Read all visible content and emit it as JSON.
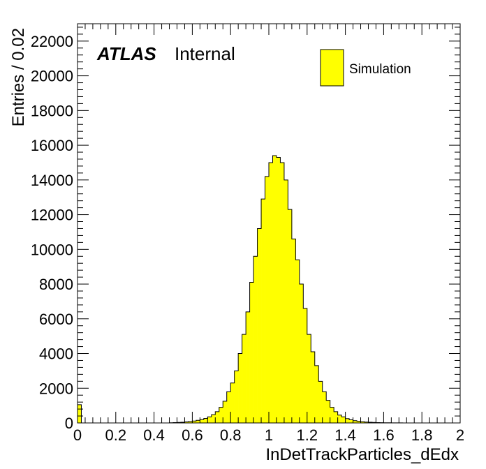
{
  "chart_data": {
    "type": "bar",
    "title": "",
    "xlabel": "InDetTrackParticles_dEdx",
    "ylabel": "Entries / 0.02",
    "xlim": [
      0,
      2
    ],
    "ylim": [
      0,
      23000
    ],
    "bin_width": 0.02,
    "x_ticks": [
      "0",
      "0.2",
      "0.4",
      "0.6",
      "0.8",
      "1",
      "1.2",
      "1.4",
      "1.6",
      "1.8",
      "2"
    ],
    "y_ticks": [
      "0",
      "2000",
      "4000",
      "6000",
      "8000",
      "10000",
      "12000",
      "14000",
      "16000",
      "18000",
      "20000",
      "22000"
    ],
    "grid": false,
    "legend_position": "top-right",
    "experiment_label": "ATLAS",
    "status_label": "Internal",
    "series": [
      {
        "name": "Simulation",
        "color": "#ffff00",
        "edge_color": "#000000",
        "values": [
          1050,
          0,
          0,
          0,
          0,
          0,
          0,
          0,
          0,
          0,
          0,
          0,
          0,
          0,
          0,
          0,
          0,
          0,
          0,
          0,
          0,
          0,
          0,
          0,
          10,
          20,
          30,
          40,
          60,
          80,
          110,
          150,
          190,
          260,
          350,
          480,
          650,
          900,
          1250,
          1800,
          2300,
          3000,
          4000,
          5100,
          6400,
          8100,
          9600,
          11200,
          12900,
          14200,
          15000,
          15400,
          15300,
          15000,
          14000,
          12300,
          10600,
          9400,
          8000,
          6600,
          5100,
          4100,
          3300,
          2400,
          1800,
          1300,
          900,
          650,
          450,
          350,
          250,
          180,
          130,
          100,
          70,
          50,
          40,
          30,
          20,
          15,
          10,
          8,
          5,
          4,
          3,
          2,
          1,
          1,
          0,
          0,
          0,
          0,
          0,
          0,
          0,
          0,
          0,
          0,
          0,
          0
        ]
      }
    ]
  }
}
